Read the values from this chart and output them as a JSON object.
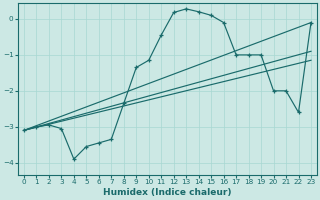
{
  "xlabel": "Humidex (Indice chaleur)",
  "bg_color": "#cce8e4",
  "line_color": "#1a6b6b",
  "grid_color": "#a8d8d2",
  "xlim": [
    -0.5,
    23.5
  ],
  "ylim": [
    -4.35,
    0.45
  ],
  "yticks": [
    0,
    -1,
    -2,
    -3,
    -4
  ],
  "xticks": [
    0,
    1,
    2,
    3,
    4,
    5,
    6,
    7,
    8,
    9,
    10,
    11,
    12,
    13,
    14,
    15,
    16,
    17,
    18,
    19,
    20,
    21,
    22,
    23
  ],
  "zigzag_x": [
    0,
    1,
    2,
    3,
    4,
    5,
    6,
    7,
    8,
    9,
    10,
    11,
    12,
    13,
    14,
    15,
    16,
    17,
    18,
    19,
    20,
    21,
    22,
    23
  ],
  "zigzag_y": [
    -3.1,
    -3.0,
    -2.95,
    -3.05,
    -3.9,
    -3.55,
    -3.45,
    -3.35,
    -2.35,
    -1.35,
    -1.15,
    -0.45,
    0.18,
    0.28,
    0.2,
    0.1,
    -0.1,
    -1.0,
    -1.0,
    -1.0,
    -2.0,
    -2.0,
    -2.6,
    -0.1
  ],
  "trend1_x": [
    0,
    23
  ],
  "trend1_y": [
    -3.1,
    -0.1
  ],
  "trend2_x": [
    0,
    23
  ],
  "trend2_y": [
    -3.1,
    -0.9
  ],
  "trend3_x": [
    0,
    23
  ],
  "trend3_y": [
    -3.1,
    -1.15
  ],
  "lw": 0.85,
  "marker_size": 3.5
}
